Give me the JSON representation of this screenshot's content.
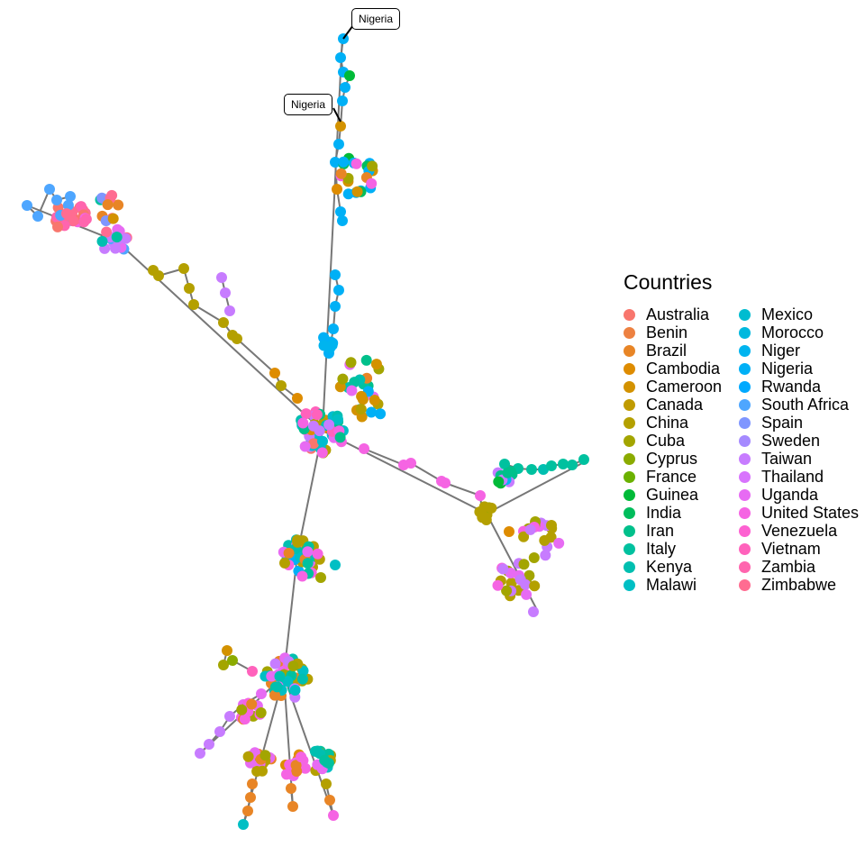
{
  "legend": {
    "title": "Countries",
    "items": [
      {
        "name": "Australia",
        "color": "#F8766D"
      },
      {
        "name": "Benin",
        "color": "#ED8141"
      },
      {
        "name": "Brazil",
        "color": "#E88526"
      },
      {
        "name": "Cambodia",
        "color": "#DE8C00"
      },
      {
        "name": "Cameroon",
        "color": "#D39200"
      },
      {
        "name": "Canada",
        "color": "#C09B00"
      },
      {
        "name": "China",
        "color": "#B4A000"
      },
      {
        "name": "Cuba",
        "color": "#A3A500"
      },
      {
        "name": "Cyprus",
        "color": "#8BAB00"
      },
      {
        "name": "France",
        "color": "#6BB100"
      },
      {
        "name": "Guinea",
        "color": "#00BA38"
      },
      {
        "name": "India",
        "color": "#00BD5C"
      },
      {
        "name": "Iran",
        "color": "#00C08B"
      },
      {
        "name": "Italy",
        "color": "#00C19F"
      },
      {
        "name": "Kenya",
        "color": "#00BFB0"
      },
      {
        "name": "Malawi",
        "color": "#00BFC4"
      },
      {
        "name": "Mexico",
        "color": "#00BCD0"
      },
      {
        "name": "Morocco",
        "color": "#00B8DE"
      },
      {
        "name": "Niger",
        "color": "#00B4EF"
      },
      {
        "name": "Nigeria",
        "color": "#00B0F6"
      },
      {
        "name": "Rwanda",
        "color": "#00A9FF"
      },
      {
        "name": "South Africa",
        "color": "#4EA6FF"
      },
      {
        "name": "Spain",
        "color": "#7F96FF"
      },
      {
        "name": "Sweden",
        "color": "#A58AFF"
      },
      {
        "name": "Taiwan",
        "color": "#C77CFF"
      },
      {
        "name": "Thailand",
        "color": "#D874FD"
      },
      {
        "name": "Uganda",
        "color": "#E76BF3"
      },
      {
        "name": "United States",
        "color": "#F564E3"
      },
      {
        "name": "Venezuela",
        "color": "#FD61D1"
      },
      {
        "name": "Vietnam",
        "color": "#FF62BC"
      },
      {
        "name": "Zambia",
        "color": "#FF65AE"
      },
      {
        "name": "Zimbabwe",
        "color": "#FF6C91"
      }
    ]
  },
  "labels": [
    {
      "text": "Nigeria"
    },
    {
      "text": "Nigeria"
    }
  ]
}
